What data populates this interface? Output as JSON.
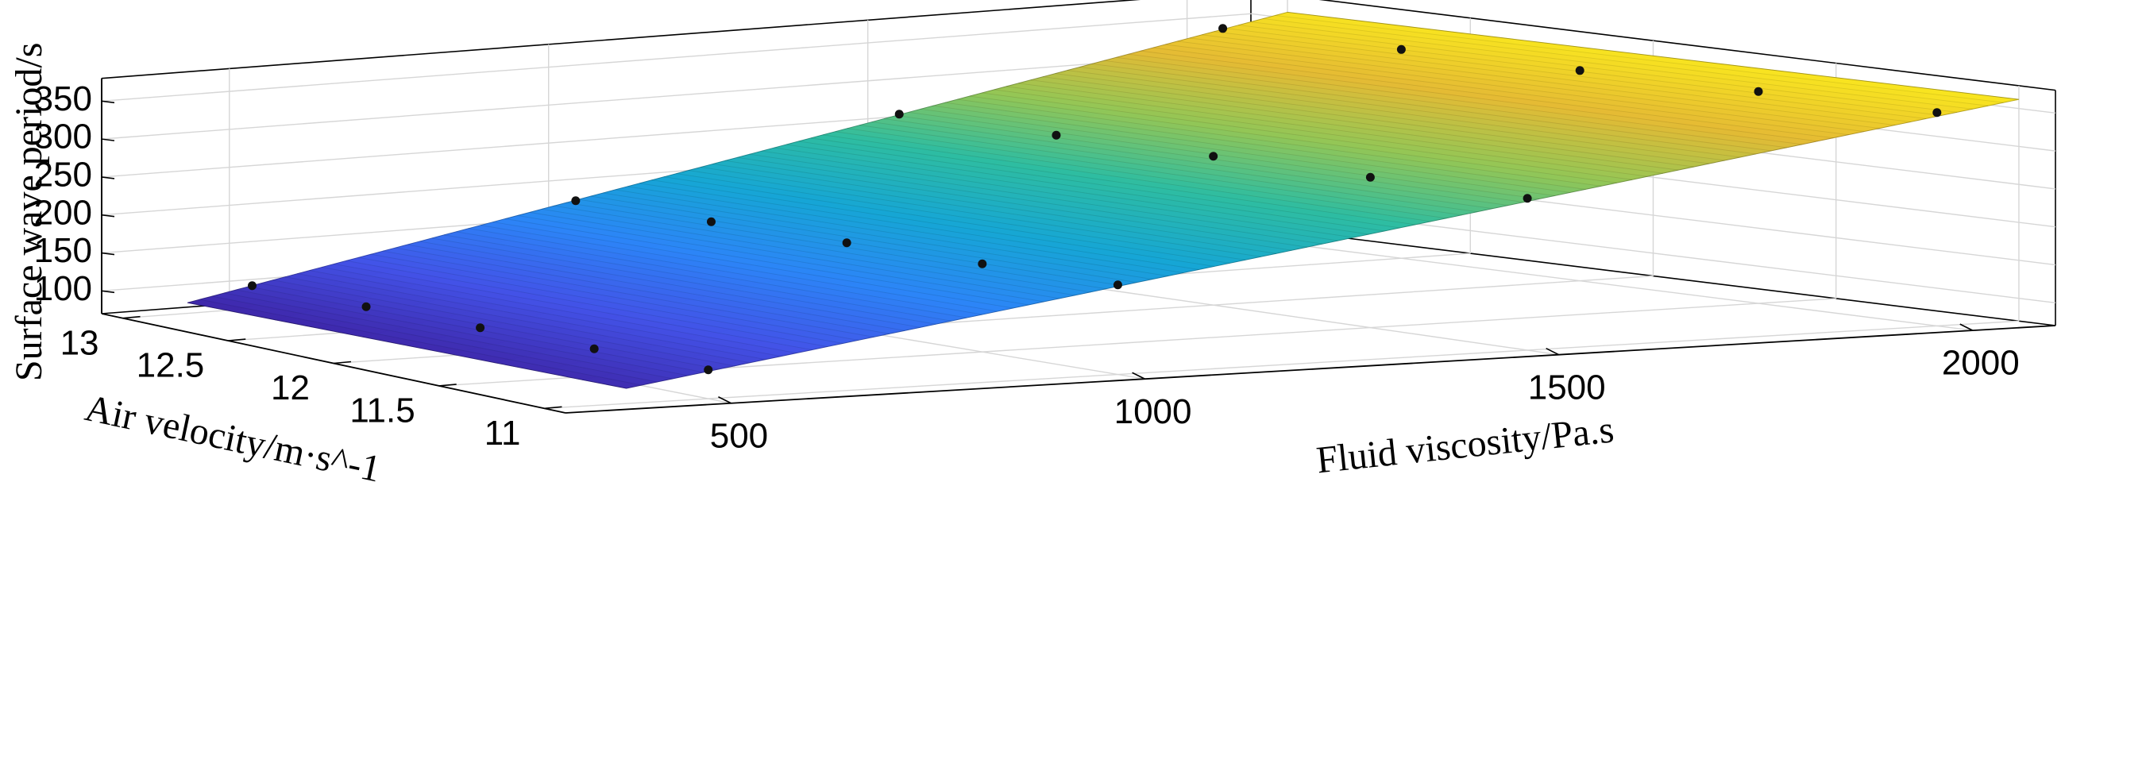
{
  "chart_data": {
    "type": "surface3d",
    "title": "",
    "x_axis": {
      "label": "Fluid viscosity/Pa.s",
      "range": [
        300,
        2100
      ],
      "ticks": [
        500,
        1000,
        1500,
        2000
      ],
      "tick_labels": [
        "500",
        "1000",
        "1500",
        "2000"
      ]
    },
    "y_axis": {
      "label": "Air velocity/m·s^-1",
      "range": [
        10.9,
        13.1
      ],
      "ticks": [
        11,
        11.5,
        12,
        12.5,
        13
      ],
      "tick_labels": [
        "11",
        "11.5",
        "12",
        "12.5",
        "13"
      ]
    },
    "z_axis": {
      "label": "Surface wave period/s",
      "range": [
        70,
        380
      ],
      "ticks": [
        100,
        150,
        200,
        250,
        300,
        350
      ],
      "tick_labels": [
        "100",
        "150",
        "200",
        "250",
        "300",
        "350"
      ]
    },
    "surface": {
      "x_range": [
        400,
        2100
      ],
      "y_range": [
        11,
        13
      ],
      "z_corners": {
        "x400_y13": 84,
        "x400_y11": 90,
        "x2100_y13": 358,
        "x2100_y11": 362
      },
      "colormap": [
        "#3e26a8",
        "#4352e7",
        "#2c85f7",
        "#16a6d5",
        "#2ebda1",
        "#93c656",
        "#e5bb34",
        "#f9e61f"
      ]
    },
    "points": [
      {
        "x": 500,
        "y": 13,
        "z": 100
      },
      {
        "x": 500,
        "y": 12.5,
        "z": 102
      },
      {
        "x": 500,
        "y": 12,
        "z": 104
      },
      {
        "x": 500,
        "y": 11.5,
        "z": 106
      },
      {
        "x": 500,
        "y": 11,
        "z": 108
      },
      {
        "x": 1000,
        "y": 13,
        "z": 180
      },
      {
        "x": 1000,
        "y": 12.5,
        "z": 182
      },
      {
        "x": 1000,
        "y": 12,
        "z": 184
      },
      {
        "x": 1000,
        "y": 11.5,
        "z": 186
      },
      {
        "x": 1000,
        "y": 11,
        "z": 188
      },
      {
        "x": 1500,
        "y": 13,
        "z": 262
      },
      {
        "x": 1500,
        "y": 12.5,
        "z": 264
      },
      {
        "x": 1500,
        "y": 12,
        "z": 266
      },
      {
        "x": 1500,
        "y": 11.5,
        "z": 268
      },
      {
        "x": 1500,
        "y": 11,
        "z": 270
      },
      {
        "x": 2000,
        "y": 13,
        "z": 343
      },
      {
        "x": 2000,
        "y": 12.5,
        "z": 345
      },
      {
        "x": 2000,
        "y": 12,
        "z": 347
      },
      {
        "x": 2000,
        "y": 11.5,
        "z": 349
      },
      {
        "x": 2000,
        "y": 11,
        "z": 351
      }
    ],
    "grid": true,
    "legend": "none"
  }
}
